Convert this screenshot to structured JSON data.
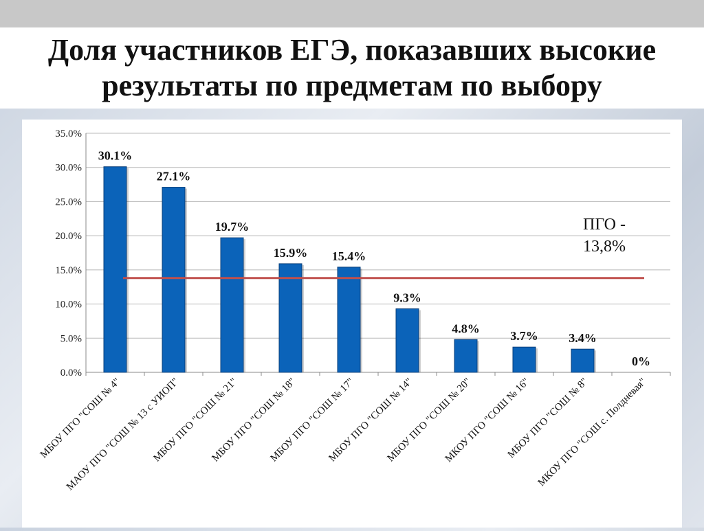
{
  "title": "Доля участников ЕГЭ, показавших высокие результаты по предметам по выбору",
  "colors": {
    "bar": "#0b63b9",
    "bar_edge": "#0a3f7a",
    "reference_line": "#c0504d",
    "grid": "#b8b8b8"
  },
  "chart_data": {
    "type": "bar",
    "title": "",
    "xlabel": "",
    "ylabel": "",
    "categories": [
      "МБОУ ПГО \"СОШ № 4\"",
      "МАОУ ПГО \"СОШ № 13 с УИОП\"",
      "МБОУ ПГО \"СОШ № 21\"",
      "МБОУ ПГО \"СОШ № 18\"",
      "МБОУ ПГО \"СОШ № 17\"",
      "МБОУ ПГО \"СОШ № 14\"",
      "МБОУ ПГО \"СОШ № 20\"",
      "МКОУ ПГО \"СОШ № 16\"",
      "МБОУ ПГО \"СОШ № 8\"",
      "МКОУ ПГО \"СОШ с. Полдневая\""
    ],
    "values": [
      30.1,
      27.1,
      19.7,
      15.9,
      15.4,
      9.3,
      4.8,
      3.7,
      3.4,
      0
    ],
    "data_labels": [
      "30.1%",
      "27.1%",
      "19.7%",
      "15.9%",
      "15.4%",
      "9.3%",
      "4.8%",
      "3.7%",
      "3.4%",
      "0%"
    ],
    "ylim": [
      0,
      35
    ],
    "yticks": [
      0,
      5,
      10,
      15,
      20,
      25,
      30,
      35
    ],
    "ytick_labels": [
      "0.0%",
      "5.0%",
      "10.0%",
      "15.0%",
      "20.0%",
      "25.0%",
      "30.0%",
      "35.0%"
    ],
    "grid": true,
    "reference_line": {
      "value": 13.8,
      "label_line1": "ПГО -",
      "label_line2": "13,8%"
    }
  }
}
